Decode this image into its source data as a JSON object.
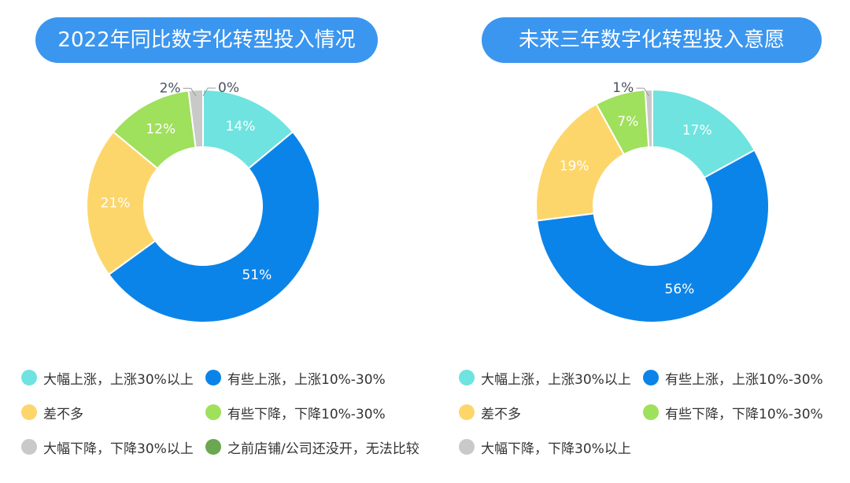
{
  "chart_data": [
    {
      "type": "pie",
      "donut": true,
      "title": "2022年同比数字化转型投入情况",
      "categories": [
        "大幅上涨，上涨30%以上",
        "有些上涨，上涨10%-30%",
        "差不多",
        "有些下降，下降10%-30%",
        "大幅下降，下降30%以上",
        "之前店铺/公司还没开，无法比较"
      ],
      "values": [
        14,
        51,
        21,
        12,
        2,
        0
      ],
      "data_labels": [
        "14%",
        "51%",
        "21%",
        "12%",
        "2%",
        "0%"
      ],
      "colors": [
        "#6fe3df",
        "#0b84e9",
        "#fdd66b",
        "#9fe05c",
        "#c9c9c9",
        "#6aa84f"
      ],
      "legend": "bottom"
    },
    {
      "type": "pie",
      "donut": true,
      "title": "未来三年数字化转型投入意愿",
      "categories": [
        "大幅上涨，上涨30%以上",
        "有些上涨，上涨10%-30%",
        "差不多",
        "有些下降，下降10%-30%",
        "大幅下降，下降30%以上"
      ],
      "values": [
        17,
        56,
        19,
        7,
        1
      ],
      "data_labels": [
        "17%",
        "56%",
        "19%",
        "7%",
        "1%"
      ],
      "colors": [
        "#6fe3df",
        "#0b84e9",
        "#fdd66b",
        "#9fe05c",
        "#c9c9c9"
      ],
      "legend": "bottom"
    }
  ],
  "theme": {
    "title_bg": "#3b96ef",
    "title_text": "#ffffff",
    "label_inside": "#ffffff",
    "label_outside": "#4b5162",
    "leader_line": "#9a9a9a",
    "legend_text": "#333333"
  }
}
